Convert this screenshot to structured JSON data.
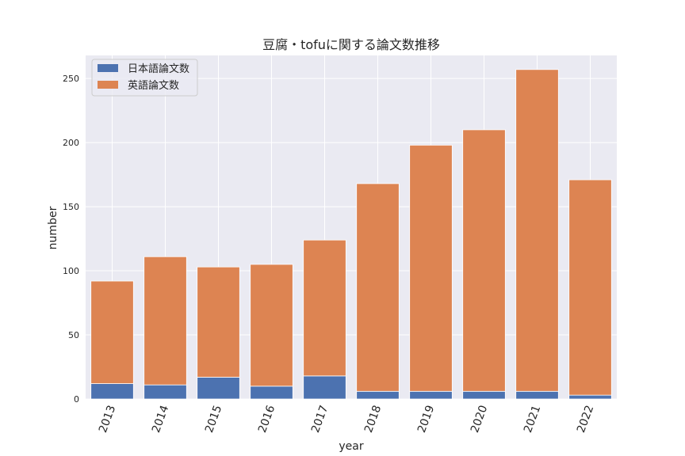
{
  "chart_data": {
    "type": "bar",
    "stacked": true,
    "title": "豆腐・tofuに関する論文数推移",
    "xlabel": "year",
    "ylabel": "number",
    "categories": [
      "2013",
      "2014",
      "2015",
      "2016",
      "2017",
      "2018",
      "2019",
      "2020",
      "2021",
      "2022"
    ],
    "series": [
      {
        "name": "日本語論文数",
        "color": "#4c72b0",
        "values": [
          12,
          11,
          17,
          10,
          18,
          6,
          6,
          6,
          6,
          3
        ]
      },
      {
        "name": "英語論文数",
        "color": "#dd8452",
        "values": [
          80,
          100,
          86,
          95,
          106,
          162,
          192,
          204,
          251,
          168
        ]
      }
    ],
    "ylim": [
      0,
      268
    ],
    "yticks": [
      0,
      50,
      100,
      150,
      200,
      250
    ],
    "grid": true,
    "legend": "top-left",
    "background": "#eaeaf2"
  }
}
